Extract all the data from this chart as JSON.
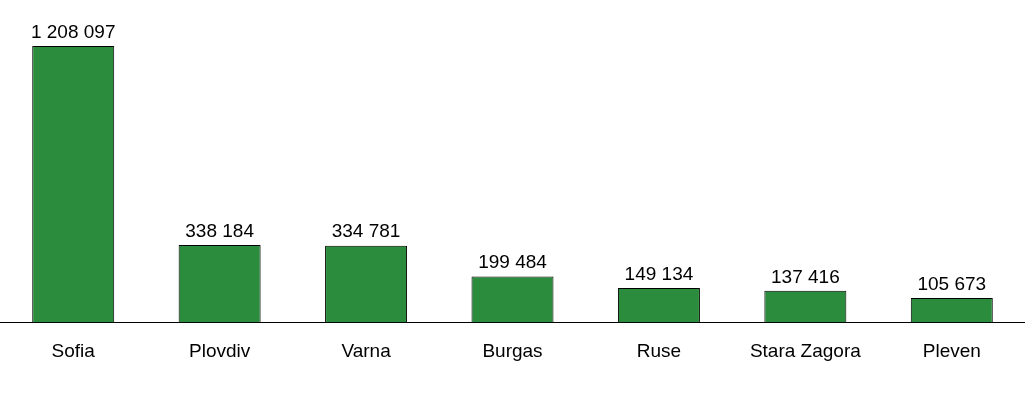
{
  "chart_data": {
    "type": "bar",
    "categories": [
      "Sofia",
      "Plovdiv",
      "Varna",
      "Burgas",
      "Ruse",
      "Stara Zagora",
      "Pleven"
    ],
    "values": [
      1208097,
      338184,
      334781,
      199484,
      149134,
      137416,
      105673
    ],
    "value_labels": [
      "1 208 097",
      "338 184",
      "334 781",
      "199 484",
      "149 134",
      "137 416",
      "105 673"
    ],
    "color": "#2a8c3c",
    "grid": false,
    "legend": false
  }
}
